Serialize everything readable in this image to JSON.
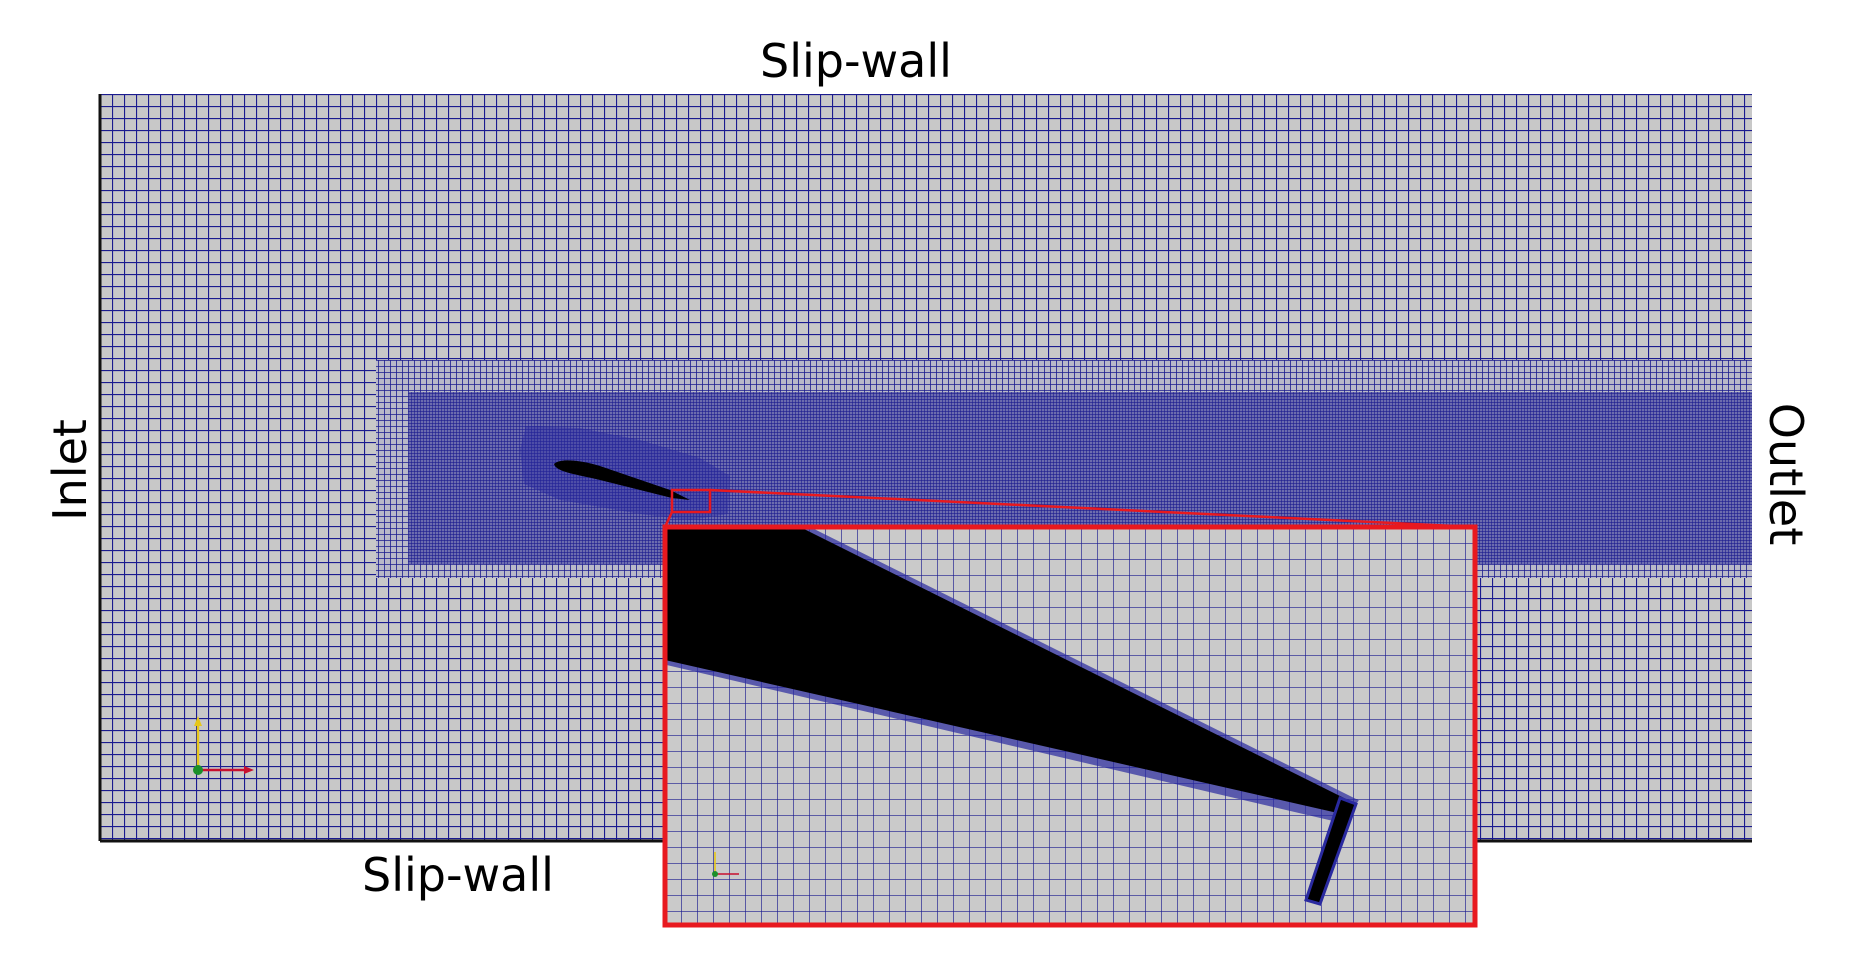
{
  "labels": {
    "top": "Slip-wall",
    "bottom": "Slip-wall",
    "left": "Inlet",
    "right": "Outlet"
  },
  "colors": {
    "mesh_line": "#1b1b8f",
    "mesh_background": "#c8c8c8",
    "airfoil": "#000000",
    "zoom_frame": "#e8191f",
    "axis_x": "#c8102e",
    "axis_y": "#e6c619",
    "axis_z": "#1a8f2a"
  },
  "icons": {
    "main_axes": "axes-triad-icon",
    "inset_axes": "axes-triad-icon"
  }
}
